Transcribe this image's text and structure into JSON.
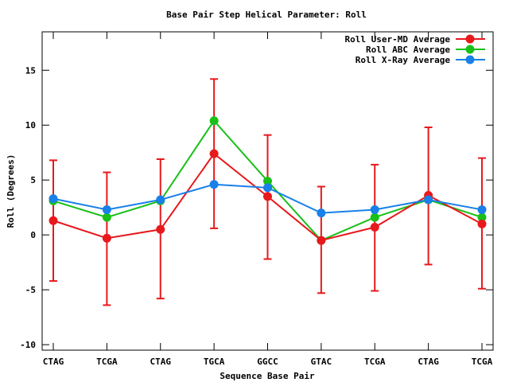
{
  "chart_data": {
    "type": "line",
    "title": "Base Pair Step Helical Parameter: Roll",
    "xlabel": "Sequence Base Pair",
    "ylabel": "Roll (Degrees)",
    "categories": [
      "CTAG",
      "TCGA",
      "CTAG",
      "TGCA",
      "GGCC",
      "GTAC",
      "TCGA",
      "CTAG",
      "TCGA"
    ],
    "ylim": [
      -10.5,
      18.5
    ],
    "yticks": [
      -10,
      -5,
      0,
      5,
      10,
      15
    ],
    "ytick_labels": [
      "-10",
      "-5",
      "0",
      "5",
      "10",
      "15"
    ],
    "legend_position": "top-right",
    "grid": false,
    "series": [
      {
        "name": "Roll User-MD Average",
        "color": "#e8181c",
        "values": [
          1.3,
          -0.3,
          0.5,
          7.4,
          3.5,
          -0.5,
          0.7,
          3.6,
          1.0
        ],
        "error_low": [
          -4.2,
          -6.4,
          -5.8,
          0.6,
          -2.2,
          -5.3,
          -5.1,
          -2.7,
          -4.9
        ],
        "error_high": [
          6.8,
          5.7,
          6.9,
          14.2,
          9.1,
          4.4,
          6.4,
          9.8,
          7.0
        ]
      },
      {
        "name": "Roll ABC Average",
        "color": "#18c018",
        "values": [
          3.1,
          1.6,
          3.1,
          10.4,
          4.9,
          -0.5,
          1.6,
          3.2,
          1.6
        ]
      },
      {
        "name": "Roll X-Ray Average",
        "color": "#1880e8",
        "values": [
          3.3,
          2.3,
          3.2,
          4.6,
          4.3,
          2.0,
          2.3,
          3.2,
          2.3
        ]
      }
    ]
  }
}
